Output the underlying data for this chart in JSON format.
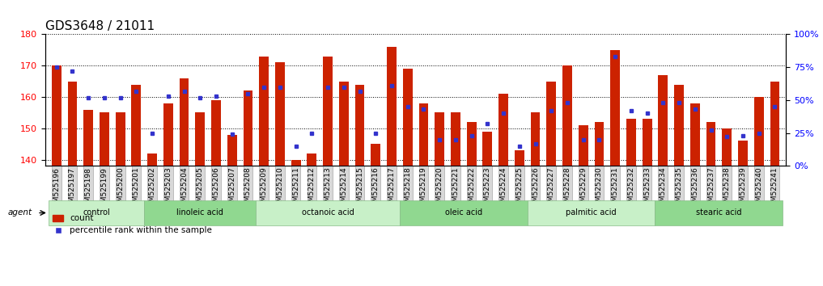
{
  "title": "GDS3648 / 21011",
  "samples": [
    "GSM525196",
    "GSM525197",
    "GSM525198",
    "GSM525199",
    "GSM525200",
    "GSM525201",
    "GSM525202",
    "GSM525203",
    "GSM525204",
    "GSM525205",
    "GSM525206",
    "GSM525207",
    "GSM525208",
    "GSM525209",
    "GSM525210",
    "GSM525211",
    "GSM525212",
    "GSM525213",
    "GSM525214",
    "GSM525215",
    "GSM525216",
    "GSM525217",
    "GSM525218",
    "GSM525219",
    "GSM525220",
    "GSM525221",
    "GSM525222",
    "GSM525223",
    "GSM525224",
    "GSM525225",
    "GSM525226",
    "GSM525227",
    "GSM525228",
    "GSM525229",
    "GSM525230",
    "GSM525231",
    "GSM525232",
    "GSM525233",
    "GSM525234",
    "GSM525235",
    "GSM525236",
    "GSM525237",
    "GSM525238",
    "GSM525239",
    "GSM525240",
    "GSM525241"
  ],
  "bar_heights": [
    170,
    165,
    156,
    155,
    155,
    164,
    142,
    158,
    166,
    155,
    159,
    148,
    162,
    173,
    171,
    140,
    142,
    173,
    165,
    164,
    145,
    176,
    169,
    158,
    155,
    155,
    152,
    149,
    161,
    143,
    155,
    165,
    170,
    151,
    152,
    175,
    153,
    153,
    167,
    164,
    158,
    152,
    150,
    146,
    160,
    165
  ],
  "blue_pct": [
    75,
    72,
    52,
    52,
    52,
    57,
    25,
    53,
    57,
    52,
    53,
    24,
    55,
    60,
    60,
    15,
    25,
    60,
    60,
    57,
    25,
    61,
    45,
    43,
    20,
    20,
    23,
    32,
    40,
    15,
    17,
    42,
    48,
    20,
    20,
    83,
    42,
    40,
    48,
    48,
    43,
    27,
    22,
    23,
    25,
    45
  ],
  "groups": [
    {
      "label": "control",
      "start": 0,
      "end": 6,
      "color": "#c8f0c8"
    },
    {
      "label": "linoleic acid",
      "start": 6,
      "end": 13,
      "color": "#c8f0c8"
    },
    {
      "label": "octanoic acid",
      "start": 13,
      "end": 22,
      "color": "#c8f0c8"
    },
    {
      "label": "oleic acid",
      "start": 22,
      "end": 30,
      "color": "#c8f0c8"
    },
    {
      "label": "palmitic acid",
      "start": 30,
      "end": 38,
      "color": "#c8f0c8"
    },
    {
      "label": "stearic acid",
      "start": 38,
      "end": 46,
      "color": "#c8f0c8"
    }
  ],
  "ylim_left": [
    138,
    180
  ],
  "ylim_right": [
    0,
    100
  ],
  "yticks_left": [
    140,
    150,
    160,
    170,
    180
  ],
  "yticks_right": [
    0,
    25,
    50,
    75,
    100
  ],
  "bar_color": "#cc2200",
  "blue_color": "#3333cc",
  "bg_color": "#ffffff",
  "title_fontsize": 11,
  "tick_fontsize": 6.5
}
